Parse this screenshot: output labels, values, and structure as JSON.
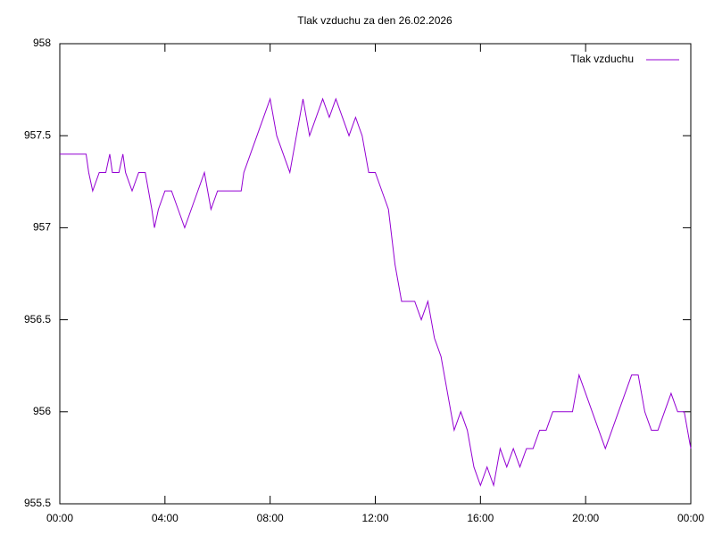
{
  "chart_data": {
    "type": "line",
    "title": "Tlak vzduchu za den 26.02.2026",
    "x": [
      0,
      0.5,
      1.0,
      1.1,
      1.25,
      1.5,
      1.75,
      1.9,
      2.0,
      2.25,
      2.4,
      2.5,
      2.75,
      3.0,
      3.25,
      3.5,
      3.6,
      3.75,
      4.0,
      4.25,
      4.5,
      4.75,
      5.0,
      5.25,
      5.5,
      5.75,
      6.0,
      6.5,
      6.9,
      7.0,
      7.25,
      7.5,
      7.75,
      8.0,
      8.25,
      8.5,
      8.75,
      9.0,
      9.25,
      9.5,
      9.75,
      10.0,
      10.25,
      10.5,
      10.75,
      11.0,
      11.25,
      11.5,
      11.75,
      12.0,
      12.25,
      12.5,
      12.75,
      13.0,
      13.25,
      13.5,
      13.75,
      14.0,
      14.25,
      14.5,
      14.75,
      15.0,
      15.25,
      15.5,
      15.75,
      16.0,
      16.25,
      16.5,
      16.75,
      17.0,
      17.25,
      17.5,
      17.75,
      18.0,
      18.25,
      18.5,
      18.75,
      19.0,
      19.5,
      19.75,
      20.0,
      20.25,
      20.5,
      20.75,
      21.0,
      21.25,
      21.5,
      21.75,
      22.0,
      22.25,
      22.5,
      22.75,
      23.0,
      23.25,
      23.5,
      23.75,
      24.0
    ],
    "series": [
      {
        "name": "Tlak vzduchu",
        "color": "#9400d3",
        "values": [
          957.4,
          957.4,
          957.4,
          957.3,
          957.2,
          957.3,
          957.3,
          957.4,
          957.3,
          957.3,
          957.4,
          957.3,
          957.2,
          957.3,
          957.3,
          957.1,
          957.0,
          957.1,
          957.2,
          957.2,
          957.1,
          957.0,
          957.1,
          957.2,
          957.3,
          957.1,
          957.2,
          957.2,
          957.2,
          957.3,
          957.4,
          957.5,
          957.6,
          957.7,
          957.5,
          957.4,
          957.3,
          957.5,
          957.7,
          957.5,
          957.6,
          957.7,
          957.6,
          957.7,
          957.6,
          957.5,
          957.6,
          957.5,
          957.3,
          957.3,
          957.2,
          957.1,
          956.8,
          956.6,
          956.6,
          956.6,
          956.5,
          956.6,
          956.4,
          956.3,
          956.1,
          955.9,
          956.0,
          955.9,
          955.7,
          955.6,
          955.7,
          955.6,
          955.8,
          955.7,
          955.8,
          955.7,
          955.8,
          955.8,
          955.9,
          955.9,
          956.0,
          956.0,
          956.0,
          956.2,
          956.1,
          956.0,
          955.9,
          955.8,
          955.9,
          956.0,
          956.1,
          956.2,
          956.2,
          956.0,
          955.9,
          955.9,
          956.0,
          956.1,
          956.0,
          956.0,
          955.8
        ]
      }
    ],
    "xlim": [
      0,
      24
    ],
    "xticks": [
      {
        "value": 0,
        "label": "00:00"
      },
      {
        "value": 4,
        "label": "04:00"
      },
      {
        "value": 8,
        "label": "08:00"
      },
      {
        "value": 12,
        "label": "12:00"
      },
      {
        "value": 16,
        "label": "16:00"
      },
      {
        "value": 20,
        "label": "20:00"
      },
      {
        "value": 24,
        "label": "00:00"
      }
    ],
    "ylim": [
      955.5,
      958
    ],
    "yticks": [
      955.5,
      956,
      956.5,
      957,
      957.5,
      958
    ],
    "legend": "top-right"
  }
}
